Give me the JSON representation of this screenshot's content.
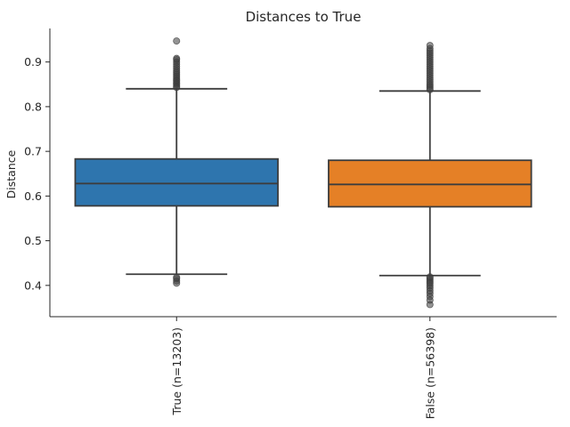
{
  "chart_data": {
    "type": "box",
    "title": "Distances to True",
    "xlabel": "",
    "ylabel": "Distance",
    "ylim": [
      0.33,
      0.975
    ],
    "yticks": [
      0.4,
      0.5,
      0.6,
      0.7,
      0.8,
      0.9
    ],
    "ytick_labels": [
      "0.4",
      "0.5",
      "0.6",
      "0.7",
      "0.8",
      "0.9"
    ],
    "grid": false,
    "categories": [
      "True (n=13203)",
      "False (n=56398)"
    ],
    "boxes": [
      {
        "category": "True (n=13203)",
        "color": "#2e75ae",
        "whisker_low": 0.425,
        "q1": 0.578,
        "median": 0.628,
        "q3": 0.683,
        "whisker_high": 0.84,
        "outliers": [
          0.405,
          0.41,
          0.415,
          0.418,
          0.843,
          0.846,
          0.85,
          0.853,
          0.857,
          0.86,
          0.864,
          0.868,
          0.872,
          0.876,
          0.88,
          0.885,
          0.89,
          0.895,
          0.9,
          0.905,
          0.908,
          0.947
        ]
      },
      {
        "category": "False (n=56398)",
        "color": "#e58026",
        "whisker_low": 0.422,
        "q1": 0.576,
        "median": 0.626,
        "q3": 0.68,
        "whisker_high": 0.835,
        "outliers": [
          0.357,
          0.367,
          0.375,
          0.382,
          0.388,
          0.394,
          0.399,
          0.404,
          0.408,
          0.412,
          0.416,
          0.419,
          0.838,
          0.842,
          0.846,
          0.85,
          0.855,
          0.86,
          0.865,
          0.87,
          0.875,
          0.88,
          0.885,
          0.89,
          0.895,
          0.9,
          0.905,
          0.91,
          0.915,
          0.92,
          0.925,
          0.93,
          0.937
        ]
      }
    ]
  }
}
